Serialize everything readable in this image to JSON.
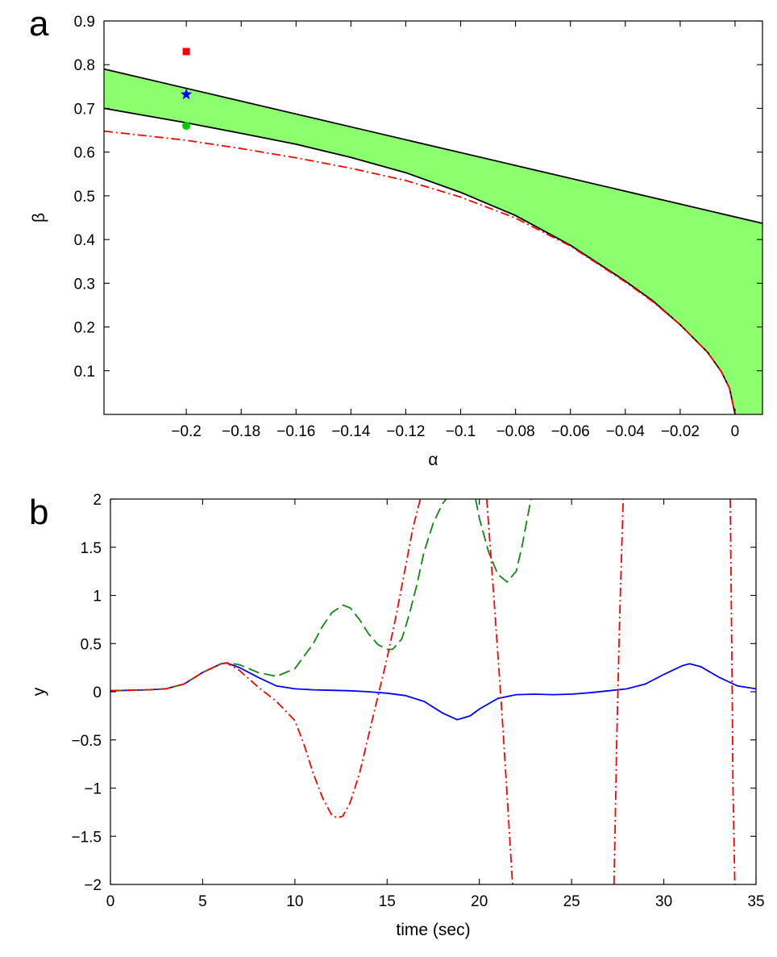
{
  "chart_data": [
    {
      "panel": "a",
      "type": "area",
      "xlabel": "α",
      "ylabel": "β",
      "xlim": [
        -0.23,
        0.01
      ],
      "ylim": [
        0,
        0.9
      ],
      "grid": false,
      "xticks": [
        -0.2,
        -0.18,
        -0.16,
        -0.14,
        -0.12,
        -0.1,
        -0.08,
        -0.06,
        -0.04,
        -0.02,
        0
      ],
      "xtick_labels": [
        "−0.2",
        "−0.18",
        "−0.16",
        "−0.14",
        "−0.12",
        "−0.1",
        "−0.08",
        "−0.06",
        "−0.04",
        "−0.02",
        "0"
      ],
      "yticks": [
        0.1,
        0.2,
        0.3,
        0.4,
        0.5,
        0.6,
        0.7,
        0.8,
        0.9
      ],
      "ytick_labels": [
        "0.1",
        "0.2",
        "0.3",
        "0.4",
        "0.5",
        "0.6",
        "0.7",
        "0.8",
        "0.9"
      ],
      "region": {
        "fill": "#8cff6e",
        "upper_boundary": {
          "x": [
            -0.23,
            0.01
          ],
          "y": [
            0.79,
            0.437
          ]
        },
        "lower_boundary": {
          "x": [
            -0.23,
            -0.2,
            -0.18,
            -0.16,
            -0.14,
            -0.12,
            -0.1,
            -0.08,
            -0.06,
            -0.04,
            -0.03,
            -0.02,
            -0.01,
            -0.005,
            -0.002,
            0,
            0.01
          ],
          "y": [
            0.7,
            0.667,
            0.643,
            0.618,
            0.588,
            0.553,
            0.508,
            0.455,
            0.387,
            0.305,
            0.26,
            0.205,
            0.142,
            0.098,
            0.06,
            0.0,
            0.0
          ]
        }
      },
      "series": [
        {
          "style": "dash-dot",
          "color": "#ff0000",
          "x": [
            -0.23,
            -0.2,
            -0.18,
            -0.16,
            -0.14,
            -0.12,
            -0.1,
            -0.08,
            -0.06,
            -0.04,
            -0.03,
            -0.02,
            -0.01,
            -0.005,
            -0.002,
            0
          ],
          "y": [
            0.648,
            0.627,
            0.608,
            0.587,
            0.563,
            0.535,
            0.497,
            0.449,
            0.385,
            0.303,
            0.258,
            0.205,
            0.142,
            0.098,
            0.06,
            0.0
          ]
        }
      ],
      "markers": [
        {
          "shape": "square",
          "color": "#ff0000",
          "x": -0.2,
          "y": 0.83
        },
        {
          "shape": "star",
          "color": "#0000ff",
          "x": -0.2,
          "y": 0.732
        },
        {
          "shape": "circle",
          "color": "#00cc00",
          "x": -0.2,
          "y": 0.66
        }
      ]
    },
    {
      "panel": "b",
      "type": "line",
      "xlabel": "time (sec)",
      "ylabel": "y",
      "xlim": [
        0,
        35
      ],
      "ylim": [
        -2,
        2
      ],
      "grid": false,
      "xticks": [
        0,
        5,
        10,
        15,
        20,
        25,
        30,
        35
      ],
      "xtick_labels": [
        "0",
        "5",
        "10",
        "15",
        "20",
        "25",
        "30",
        "35"
      ],
      "yticks": [
        -2,
        -1.5,
        -1,
        -0.5,
        0,
        0.5,
        1,
        1.5,
        2
      ],
      "ytick_labels": [
        "−2",
        "−1.5",
        "−1",
        "−0.5",
        "0",
        "0.5",
        "1",
        "1.5",
        "2"
      ],
      "series": [
        {
          "style": "solid",
          "color": "#0000ff",
          "x": [
            0,
            1,
            2,
            3,
            4,
            5,
            6,
            6.3,
            7,
            8,
            9,
            10,
            11,
            12,
            13,
            14,
            15,
            16,
            17,
            18,
            18.8,
            19.5,
            20,
            21,
            22,
            23,
            24,
            25,
            26,
            27,
            28,
            29,
            30,
            31,
            31.4,
            32,
            33,
            34,
            35
          ],
          "y": [
            0.01,
            0.015,
            0.02,
            0.03,
            0.08,
            0.2,
            0.29,
            0.3,
            0.25,
            0.15,
            0.06,
            0.03,
            0.02,
            0.015,
            0.01,
            0.0,
            -0.015,
            -0.04,
            -0.1,
            -0.22,
            -0.29,
            -0.25,
            -0.18,
            -0.07,
            -0.03,
            -0.025,
            -0.03,
            -0.025,
            -0.01,
            0.01,
            0.03,
            0.08,
            0.18,
            0.27,
            0.29,
            0.26,
            0.15,
            0.06,
            0.03
          ]
        },
        {
          "style": "dashed",
          "color": "#118811",
          "x": [
            0,
            1,
            2,
            3,
            4,
            5,
            6,
            6.4,
            7,
            8,
            9,
            10,
            11,
            11.5,
            12,
            12.6,
            13,
            13.5,
            14,
            14.5,
            15,
            15.3,
            15.8,
            16.2,
            16.6,
            17,
            17.5,
            18,
            18.2
          ],
          "y": [
            0.01,
            0.015,
            0.02,
            0.03,
            0.08,
            0.2,
            0.29,
            0.3,
            0.28,
            0.2,
            0.16,
            0.24,
            0.5,
            0.68,
            0.82,
            0.9,
            0.87,
            0.75,
            0.6,
            0.49,
            0.44,
            0.44,
            0.55,
            0.8,
            1.1,
            1.45,
            1.75,
            1.95,
            2.0
          ]
        },
        {
          "style": "dashed",
          "color": "#118811",
          "x": [
            19.8,
            20,
            20.5,
            21,
            21.5,
            22,
            22.3,
            22.6,
            22.8
          ],
          "y": [
            2.0,
            1.8,
            1.45,
            1.22,
            1.14,
            1.25,
            1.5,
            1.8,
            2.0
          ]
        },
        {
          "style": "dash-dot",
          "color": "#ff0000",
          "x": [
            0,
            1,
            2,
            3,
            4,
            5,
            6,
            6.3,
            7,
            8,
            9,
            10,
            10.5,
            11,
            11.5,
            12,
            12.3,
            12.6,
            13,
            13.5,
            14,
            14.5,
            15,
            15.5,
            16,
            16.4,
            16.8
          ],
          "y": [
            0.01,
            0.015,
            0.02,
            0.03,
            0.08,
            0.2,
            0.29,
            0.3,
            0.22,
            0.05,
            -0.1,
            -0.3,
            -0.55,
            -0.85,
            -1.1,
            -1.28,
            -1.31,
            -1.29,
            -1.15,
            -0.85,
            -0.45,
            -0.05,
            0.35,
            0.8,
            1.3,
            1.7,
            2.0
          ]
        },
        {
          "style": "dash-dot",
          "color": "#ff0000",
          "x": [
            20.4,
            20.8,
            21.2,
            21.5,
            21.8
          ],
          "y": [
            2.0,
            0.95,
            -0.15,
            -1.05,
            -2.0
          ]
        },
        {
          "style": "dash-dot",
          "color": "#ff0000",
          "x": [
            27.3,
            27.45,
            27.6,
            27.8
          ],
          "y": [
            -2.0,
            -0.5,
            0.7,
            2.0
          ]
        },
        {
          "style": "dash-dot",
          "color": "#ff0000",
          "x": [
            33.6,
            33.7,
            33.75,
            33.85
          ],
          "y": [
            2.0,
            0.2,
            -1.0,
            -2.0
          ]
        }
      ]
    }
  ]
}
